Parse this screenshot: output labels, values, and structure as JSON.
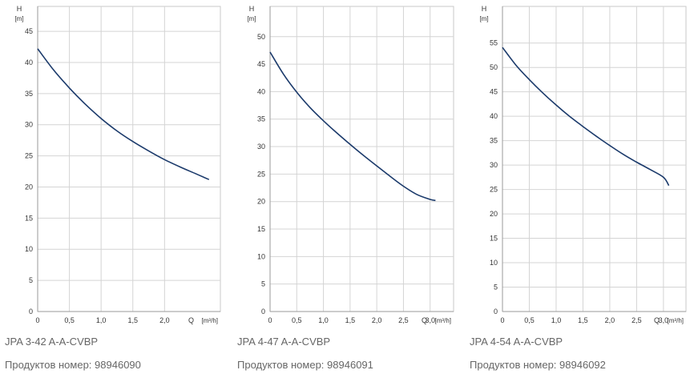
{
  "chart_data": [
    {
      "type": "line",
      "title": "JPA 3-42 A-A-CVBP",
      "product_label": "Продуктов номер:",
      "product_number": "98946090",
      "y_axis_symbol": "H",
      "y_axis_unit": "[m]",
      "x_axis_symbol": "Q",
      "x_axis_unit": "[m³/h]",
      "x_ticks": [
        "0",
        "0,5",
        "1,0",
        "1,5",
        "2,0"
      ],
      "y_ticks": [
        "0",
        "5",
        "10",
        "15",
        "20",
        "25",
        "30",
        "35",
        "40",
        "45"
      ],
      "xlim": [
        0,
        2.88
      ],
      "ylim": [
        0,
        49
      ],
      "grid": true,
      "series": [
        {
          "x": [
            0,
            0.25,
            0.5,
            0.75,
            1.0,
            1.25,
            1.5,
            1.75,
            2.0,
            2.25,
            2.5,
            2.7
          ],
          "y": [
            42.2,
            38.8,
            35.9,
            33.3,
            31.0,
            29.0,
            27.3,
            25.8,
            24.4,
            23.2,
            22.1,
            21.2
          ],
          "color": "#1b3a6b"
        }
      ]
    },
    {
      "type": "line",
      "title": "JPA 4-47 A-A-CVBP",
      "product_label": "Продуктов номер:",
      "product_number": "98946091",
      "y_axis_symbol": "H",
      "y_axis_unit": "[m]",
      "x_axis_symbol": "Q",
      "x_axis_unit": "[m³/h]",
      "x_ticks": [
        "0",
        "0,5",
        "1,0",
        "1,5",
        "2,0",
        "2,5",
        "3,0"
      ],
      "y_ticks": [
        "0",
        "5",
        "10",
        "15",
        "20",
        "25",
        "30",
        "35",
        "40",
        "45",
        "50"
      ],
      "xlim": [
        0,
        3.44
      ],
      "ylim": [
        0,
        55.5
      ],
      "grid": true,
      "series": [
        {
          "x": [
            0,
            0.25,
            0.5,
            0.75,
            1.0,
            1.25,
            1.5,
            1.75,
            2.0,
            2.25,
            2.5,
            2.75,
            3.0,
            3.1
          ],
          "y": [
            47.2,
            43.2,
            39.9,
            37.1,
            34.7,
            32.5,
            30.4,
            28.4,
            26.5,
            24.6,
            22.8,
            21.3,
            20.4,
            20.2
          ],
          "color": "#1b3a6b"
        }
      ]
    },
    {
      "type": "line",
      "title": "JPA 4-54 A-A-CVBP",
      "product_label": "Продуктов номер:",
      "product_number": "98946092",
      "y_axis_symbol": "H",
      "y_axis_unit": "[m]",
      "x_axis_symbol": "Q",
      "x_axis_unit": "[m³/h]",
      "x_ticks": [
        "0",
        "0,5",
        "1,0",
        "1,5",
        "2,0",
        "2,5",
        "3,0"
      ],
      "y_ticks": [
        "0",
        "5",
        "10",
        "15",
        "20",
        "25",
        "30",
        "35",
        "40",
        "45",
        "50",
        "55"
      ],
      "xlim": [
        0,
        3.42
      ],
      "ylim": [
        0,
        62.5
      ],
      "grid": true,
      "series": [
        {
          "x": [
            0,
            0.25,
            0.5,
            0.75,
            1.0,
            1.25,
            1.5,
            1.75,
            2.0,
            2.25,
            2.5,
            2.75,
            3.0,
            3.1
          ],
          "y": [
            54.1,
            50.5,
            47.5,
            44.8,
            42.3,
            40.0,
            37.9,
            35.9,
            34.0,
            32.2,
            30.6,
            29.1,
            27.5,
            25.8
          ],
          "color": "#1b3a6b"
        }
      ]
    }
  ]
}
